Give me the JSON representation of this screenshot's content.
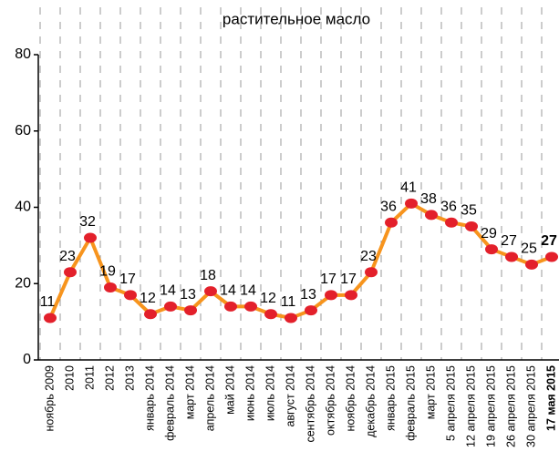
{
  "chart_data": {
    "type": "line",
    "title": "растительное масло",
    "categories": [
      "ноябрь 2009",
      "2010",
      "2011",
      "2012",
      "2013",
      "январь 2014",
      "февраль 2014",
      "март 2014",
      "апрель 2014",
      "май 2014",
      "июнь 2014",
      "июль 2014",
      "август 2014",
      "сентябрь 2014",
      "октябрь 2014",
      "ноябрь 2014",
      "декабрь 2014",
      "январь 2015",
      "февраль 2015",
      "март 2015",
      "5 апреля 2015",
      "12 апреля 2015",
      "19 апреля 2015",
      "26 апреля 2015",
      "30 апреля 2015",
      "17 мая 2015"
    ],
    "values": [
      11,
      23,
      32,
      19,
      17,
      12,
      14,
      13,
      18,
      14,
      14,
      12,
      11,
      13,
      17,
      17,
      23,
      36,
      41,
      38,
      36,
      35,
      29,
      27,
      25,
      27
    ],
    "color": "#f7941d",
    "marker_color": "#e3202b",
    "ylim": [
      0,
      80
    ],
    "yticks": [
      0,
      20,
      40,
      60,
      80
    ]
  }
}
